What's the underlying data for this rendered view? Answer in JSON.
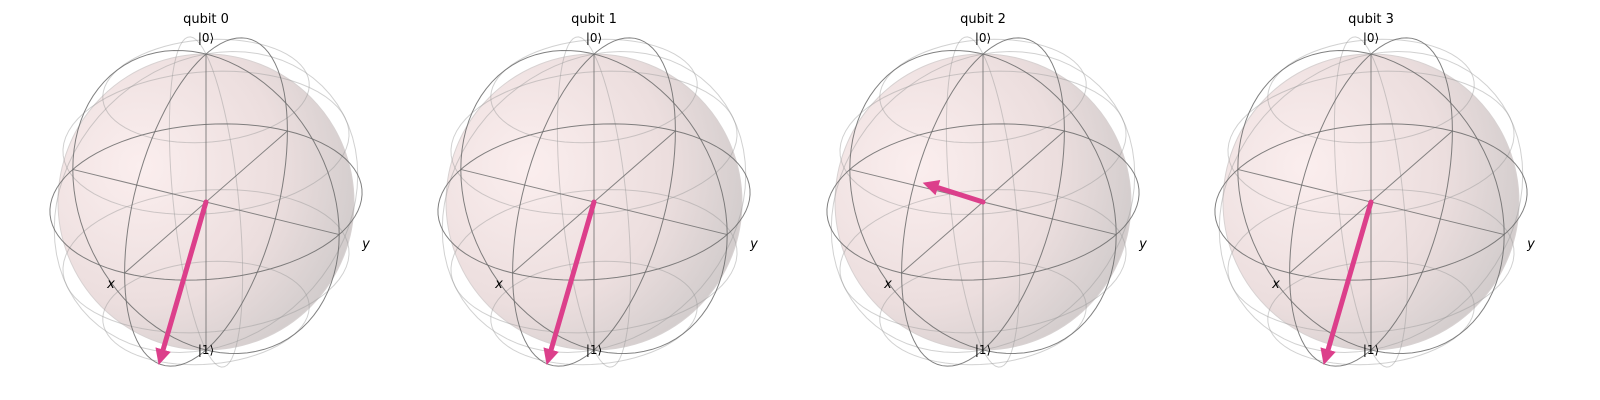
{
  "figure": {
    "sphere_color": "#f4e3e3",
    "sphere_shade": "#cfcaca",
    "vector_color": "#dc3f8b",
    "top_label": "|0⟩",
    "bottom_label": "|1⟩",
    "axis_x_label": "x",
    "axis_y_label": "y"
  },
  "qubits": [
    {
      "title": "qubit 0",
      "bloch": [
        0.58,
        0.0,
        -0.82
      ]
    },
    {
      "title": "qubit 1",
      "bloch": [
        0.58,
        0.0,
        -0.82
      ]
    },
    {
      "title": "qubit 2",
      "bloch": [
        0.0,
        -0.45,
        0.03
      ]
    },
    {
      "title": "qubit 3",
      "bloch": [
        0.58,
        0.0,
        -0.82
      ]
    }
  ]
}
